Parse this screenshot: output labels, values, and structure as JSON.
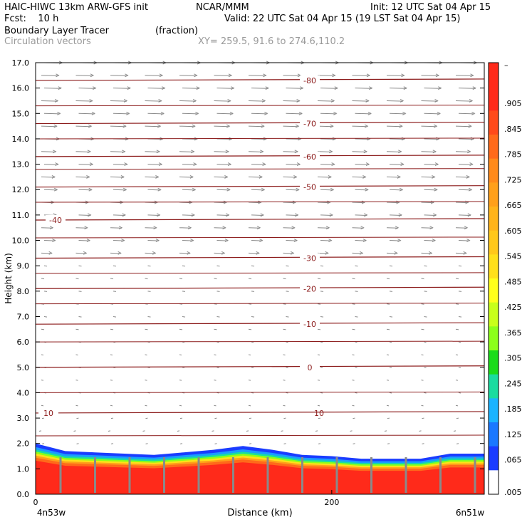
{
  "header": {
    "model": "HAIC-HIWC 13km ARW-GFS init",
    "org": "NCAR/MMM",
    "init": "Init: 12 UTC Sat 04 Apr 15",
    "fcst": "Fcst:    10 h",
    "valid": "Valid: 22 UTC Sat 04 Apr 15 (19 LST Sat 04 Apr 15)",
    "field": "Boundary Layer Tracer",
    "field_units": "(fraction)",
    "vectors": "Circulation vectors",
    "xy": "XY= 259.5, 91.6 to 274.6,110.2"
  },
  "chart_data": {
    "type": "heatmap",
    "title": "Boundary Layer Tracer",
    "xlabel": "Distance (km)",
    "ylabel": "Height (km)",
    "xlim": [
      0,
      303
    ],
    "ylim": [
      0,
      17
    ],
    "x_ticks": [
      "0",
      "200"
    ],
    "x_end_labels": [
      "4n53w",
      "6n51w"
    ],
    "y_ticks": [
      "0.0",
      "1.0",
      "2.0",
      "3.0",
      "4.0",
      "5.0",
      "6.0",
      "7.0",
      "8.0",
      "9.0",
      "10.0",
      "11.0",
      "12.0",
      "13.0",
      "14.0",
      "15.0",
      "16.0",
      "17.0"
    ],
    "colorbar_labels": [
      "–",
      ".905",
      ".845",
      ".785",
      ".725",
      ".665",
      ".605",
      ".545",
      ".485",
      ".425",
      ".365",
      ".305",
      ".245",
      ".185",
      ".125",
      ".065",
      ".005"
    ],
    "colorbar_colors": [
      "#ff2a1a",
      "#ff2a1a",
      "#ff4a1a",
      "#ff6a1a",
      "#ff8a1a",
      "#ffa01a",
      "#ffb41a",
      "#ffc81a",
      "#ffe01a",
      "#ffff1a",
      "#c8ff1a",
      "#8cff1a",
      "#1adc1a",
      "#1adca0",
      "#1ab4ff",
      "#1a78ff",
      "#1a3cff",
      "#ffffff"
    ],
    "isotherms": [
      {
        "label": "-80",
        "height": 16.3
      },
      {
        "label": "-70",
        "height": 14.6
      },
      {
        "label": "-60",
        "height": 13.3
      },
      {
        "label": "-50",
        "height": 12.1
      },
      {
        "label": "-40",
        "height": 10.8
      },
      {
        "label": "-30",
        "height": 9.3
      },
      {
        "label": "-20",
        "height": 8.1
      },
      {
        "label": "-10",
        "height": 6.7
      },
      {
        "label": "0",
        "height": 5.0
      },
      {
        "label": "10",
        "height": 3.2
      }
    ],
    "tracer_top_profile": {
      "x": [
        0,
        20,
        40,
        60,
        80,
        100,
        120,
        140,
        160,
        180,
        200,
        220,
        240,
        260,
        280,
        303
      ],
      "height": [
        2.0,
        1.7,
        1.65,
        1.6,
        1.55,
        1.65,
        1.75,
        1.9,
        1.75,
        1.55,
        1.5,
        1.4,
        1.4,
        1.4,
        1.6,
        1.6
      ]
    },
    "grid": false,
    "legend": "right"
  }
}
